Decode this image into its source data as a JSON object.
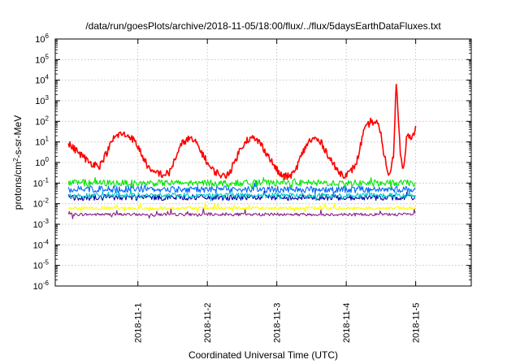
{
  "chart_data": {
    "type": "line",
    "title": "/data/run/goesPlots/archive/2018-11-05/18:00/flux/../flux/5daysEarthDataFluxes.txt",
    "xlabel": "Coordinated Universal Time (UTC)",
    "ylabel": {
      "pre": "protons/cm",
      "sup": "2",
      "post": "-s-sr-MeV"
    },
    "y_scale": "log",
    "ylim_exponents": [
      -6,
      6
    ],
    "y_ticks": [
      {
        "base": "10",
        "exp": "-6"
      },
      {
        "base": "10",
        "exp": "-5"
      },
      {
        "base": "10",
        "exp": "-4"
      },
      {
        "base": "10",
        "exp": "-3"
      },
      {
        "base": "10",
        "exp": "-2"
      },
      {
        "base": "10",
        "exp": "-1"
      },
      {
        "base": "10",
        "exp": "0"
      },
      {
        "base": "10",
        "exp": "1"
      },
      {
        "base": "10",
        "exp": "2"
      },
      {
        "base": "10",
        "exp": "3"
      },
      {
        "base": "10",
        "exp": "4"
      },
      {
        "base": "10",
        "exp": "5"
      },
      {
        "base": "10",
        "exp": "6"
      }
    ],
    "x_ticks": [
      "2018-11-1",
      "2018-11-2",
      "2018-11-3",
      "2018-11-4",
      "2018-11-5"
    ],
    "grid": true,
    "legend": "none",
    "series": [
      {
        "color": "#ff0000",
        "days": [
          0.0,
          0.15,
          0.3,
          0.45,
          0.55,
          0.65,
          0.75,
          0.9,
          1.0,
          1.1,
          1.2,
          1.28,
          1.35,
          1.45,
          1.55,
          1.65,
          1.75,
          1.85,
          1.95,
          2.05,
          2.15,
          2.25,
          2.35,
          2.45,
          2.55,
          2.65,
          2.75,
          2.85,
          2.95,
          3.05,
          3.15,
          3.25,
          3.35,
          3.45,
          3.55,
          3.65,
          3.75,
          3.85,
          3.95,
          4.05,
          4.15,
          4.25,
          4.35,
          4.45,
          4.5,
          4.55,
          4.62,
          4.68,
          4.72,
          4.78,
          4.82,
          4.88,
          4.94,
          5.0
        ],
        "values": [
          8,
          3,
          1,
          0.7,
          3,
          15,
          25,
          18,
          6,
          1.2,
          0.3,
          0.35,
          0.25,
          0.3,
          2,
          10,
          15,
          8,
          2,
          0.5,
          0.3,
          0.2,
          0.5,
          3,
          12,
          15,
          10,
          3,
          0.8,
          0.25,
          0.2,
          0.3,
          2,
          10,
          15,
          8,
          2,
          0.5,
          0.25,
          0.3,
          1,
          30,
          100,
          80,
          20,
          2,
          0.2,
          2,
          8000,
          3,
          0.5,
          30,
          10,
          60
        ]
      },
      {
        "color": "#00e600",
        "days": [
          0,
          5
        ],
        "values": [
          0.1,
          0.1
        ]
      },
      {
        "color": "#0066ff",
        "days": [
          0,
          5
        ],
        "values": [
          0.05,
          0.05
        ]
      },
      {
        "color": "#00c8c8",
        "days": [
          0,
          5
        ],
        "values": [
          0.025,
          0.025
        ]
      },
      {
        "color": "#0000aa",
        "days": [
          0,
          5
        ],
        "values": [
          0.02,
          0.02
        ]
      },
      {
        "color": "#ffff00",
        "days": [
          0,
          5
        ],
        "values": [
          0.006,
          0.006
        ]
      },
      {
        "color": "#882288",
        "days": [
          0,
          5
        ],
        "values": [
          0.003,
          0.003
        ]
      }
    ]
  }
}
